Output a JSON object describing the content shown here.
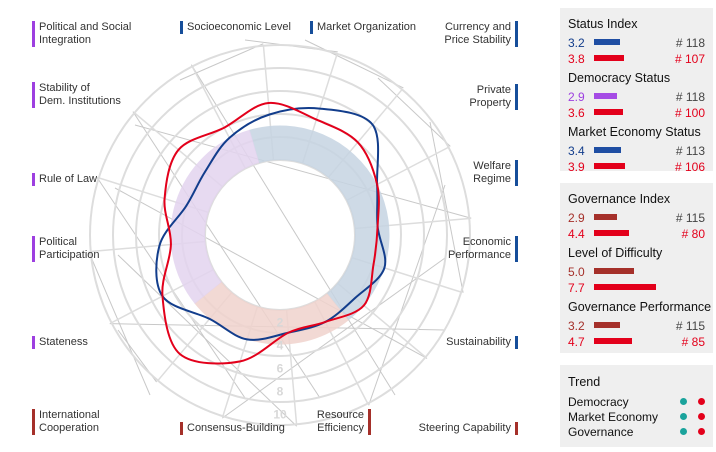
{
  "chart_data": {
    "type": "radar",
    "scale_labels": [
      "2",
      "4",
      "6",
      "8",
      "10"
    ],
    "axes": [
      {
        "name": "Socioeconomic Level",
        "category": "economy"
      },
      {
        "name": "Market Organization",
        "category": "economy"
      },
      {
        "name": "Currency and Price Stability",
        "category": "economy"
      },
      {
        "name": "Private Property",
        "category": "economy"
      },
      {
        "name": "Welfare Regime",
        "category": "economy"
      },
      {
        "name": "Economic Performance",
        "category": "economy"
      },
      {
        "name": "Sustainability",
        "category": "economy"
      },
      {
        "name": "Steering Capability",
        "category": "governance"
      },
      {
        "name": "Resource Efficiency",
        "category": "governance"
      },
      {
        "name": "Consensus-Building",
        "category": "governance"
      },
      {
        "name": "International Cooperation",
        "category": "governance"
      },
      {
        "name": "Stateness",
        "category": "democracy"
      },
      {
        "name": "Political Participation",
        "category": "democracy"
      },
      {
        "name": "Rule of Law",
        "category": "democracy"
      },
      {
        "name": "Stability of Dem. Institutions",
        "category": "democracy"
      },
      {
        "name": "Political and Social Integration",
        "category": "democracy"
      }
    ],
    "series": [
      {
        "values": [
          4.0,
          5.0,
          6.0,
          3.0,
          2.0,
          3.0,
          2.0,
          2.0,
          2.0,
          3.0,
          3.0,
          5.0,
          4.0,
          2.0,
          2.0,
          3.0
        ]
      },
      {
        "values": [
          5.0,
          4.0,
          4.0,
          3.0,
          2.0,
          2.0,
          3.0,
          2.0,
          2.0,
          5.0,
          7.0,
          5.0,
          3.0,
          4.0,
          5.0,
          4.0
        ]
      }
    ],
    "bands": [
      {
        "from_axis": 0,
        "to_axis": 6,
        "color": "#c5d4e2",
        "value": 3.0
      },
      {
        "from_axis": 7,
        "to_axis": 10,
        "color": "#f0d2cc",
        "value": 3.0
      },
      {
        "from_axis": 11,
        "to_axis": 15,
        "color": "#e3d4ef",
        "value": 3.0
      }
    ]
  },
  "colors": {
    "series_blue": "#123d8c",
    "series_red": "#e3001b",
    "series_darkred": "#a51d1d",
    "democracy_purple": "#9d3fe0",
    "economy_blue": "#164e9a",
    "governance_red": "#a5302a",
    "trend_teal": "#1aa39c",
    "trend_red": "#e3001b",
    "ring": "#dddddd"
  },
  "labels": [
    {
      "lines": [
        "Political and Social",
        "Integration"
      ],
      "side": "left",
      "color": "#9d3fe0"
    },
    {
      "lines": [
        "Socioeconomic Level"
      ],
      "side": "left",
      "color": "#164e9a"
    },
    {
      "lines": [
        "Market Organization"
      ],
      "side": "left",
      "color": "#164e9a"
    },
    {
      "lines": [
        "Currency and",
        "Price Stability"
      ],
      "side": "right",
      "color": "#164e9a"
    },
    {
      "lines": [
        "Stability of",
        "Dem. Institutions"
      ],
      "side": "left",
      "color": "#9d3fe0"
    },
    {
      "lines": [
        "Private",
        "Property"
      ],
      "side": "right",
      "color": "#164e9a"
    },
    {
      "lines": [
        "Rule of Law"
      ],
      "side": "left",
      "color": "#9d3fe0"
    },
    {
      "lines": [
        "Welfare",
        "Regime"
      ],
      "side": "right",
      "color": "#164e9a"
    },
    {
      "lines": [
        "Political",
        "Participation"
      ],
      "side": "left",
      "color": "#9d3fe0"
    },
    {
      "lines": [
        "Economic",
        "Performance"
      ],
      "side": "right",
      "color": "#164e9a"
    },
    {
      "lines": [
        "Stateness"
      ],
      "side": "left",
      "color": "#9d3fe0"
    },
    {
      "lines": [
        "Sustainability"
      ],
      "side": "right",
      "color": "#164e9a"
    },
    {
      "lines": [
        "International",
        "Cooperation"
      ],
      "side": "left",
      "color": "#a5302a"
    },
    {
      "lines": [
        "Consensus-Building"
      ],
      "side": "left",
      "color": "#a5302a"
    },
    {
      "lines": [
        "Resource",
        "Efficiency"
      ],
      "side": "right",
      "color": "#a5302a"
    },
    {
      "lines": [
        "Steering Capability"
      ],
      "side": "right",
      "color": "#a5302a"
    }
  ],
  "status_panel": {
    "groups": [
      {
        "title": "Status Index",
        "rows": [
          {
            "value": "3.2",
            "rank": "# 118",
            "color": "#123d8c",
            "bar_color": "#1f4ea3",
            "fraction": 0.32,
            "highlight": false
          },
          {
            "value": "3.8",
            "rank": "# 107",
            "color": "#e3001b",
            "bar_color": "#e3001b",
            "fraction": 0.38,
            "highlight": true
          }
        ]
      },
      {
        "title": "Democracy Status",
        "rows": [
          {
            "value": "2.9",
            "rank": "# 118",
            "color": "#9d3fe0",
            "bar_color": "#a54ce5",
            "fraction": 0.29,
            "highlight": false
          },
          {
            "value": "3.6",
            "rank": "# 100",
            "color": "#e3001b",
            "bar_color": "#e3001b",
            "fraction": 0.36,
            "highlight": true
          }
        ]
      },
      {
        "title": "Market Economy Status",
        "rows": [
          {
            "value": "3.4",
            "rank": "# 113",
            "color": "#123d8c",
            "bar_color": "#1f4ea3",
            "fraction": 0.34,
            "highlight": false
          },
          {
            "value": "3.9",
            "rank": "# 106",
            "color": "#e3001b",
            "bar_color": "#e3001b",
            "fraction": 0.39,
            "highlight": true
          }
        ]
      }
    ]
  },
  "governance_panel": {
    "groups": [
      {
        "title": "Governance Index",
        "rows": [
          {
            "value": "2.9",
            "rank": "# 115",
            "color": "#a5302a",
            "bar_color": "#a5302a",
            "fraction": 0.29,
            "highlight": false
          },
          {
            "value": "4.4",
            "rank": "# 80",
            "color": "#e3001b",
            "bar_color": "#e3001b",
            "fraction": 0.44,
            "highlight": true
          }
        ]
      },
      {
        "title": "Level of Difficulty",
        "rows": [
          {
            "value": "5.0",
            "rank": "",
            "color": "#a5302a",
            "bar_color": "#a5302a",
            "fraction": 0.5,
            "highlight": false
          },
          {
            "value": "7.7",
            "rank": "",
            "color": "#e3001b",
            "bar_color": "#e3001b",
            "fraction": 0.77,
            "highlight": true
          }
        ]
      },
      {
        "title": "Governance Performance",
        "rows": [
          {
            "value": "3.2",
            "rank": "# 115",
            "color": "#a5302a",
            "bar_color": "#a5302a",
            "fraction": 0.32,
            "highlight": false
          },
          {
            "value": "4.7",
            "rank": "# 85",
            "color": "#e3001b",
            "bar_color": "#e3001b",
            "fraction": 0.47,
            "highlight": true
          }
        ]
      }
    ]
  },
  "trend_panel": {
    "title": "Trend",
    "items": [
      {
        "label": "Democracy",
        "dot1": "#1aa39c",
        "dot2": "#e3001b"
      },
      {
        "label": "Market Economy",
        "dot1": "#1aa39c",
        "dot2": "#e3001b"
      },
      {
        "label": "Governance",
        "dot1": "#1aa39c",
        "dot2": "#e3001b"
      }
    ]
  }
}
